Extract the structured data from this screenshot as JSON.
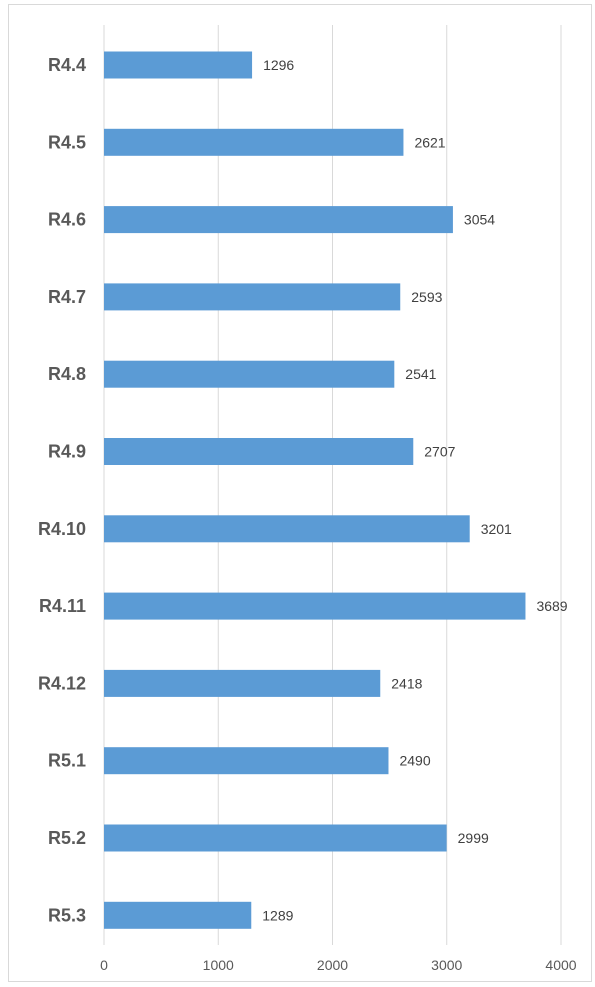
{
  "chart_data": {
    "type": "bar",
    "orientation": "horizontal",
    "categories": [
      "R4.4",
      "R4.5",
      "R4.6",
      "R4.7",
      "R4.8",
      "R4.9",
      "R4.10",
      "R4.11",
      "R4.12",
      "R5.1",
      "R5.2",
      "R5.3"
    ],
    "values": [
      1296,
      2621,
      3054,
      2593,
      2541,
      2707,
      3201,
      3689,
      2418,
      2490,
      2999,
      1289
    ],
    "xlim": [
      0,
      4000
    ],
    "xticks": [
      "0",
      "1000",
      "2000",
      "3000",
      "4000"
    ],
    "title": "",
    "xlabel": "",
    "ylabel": "",
    "grid": true,
    "bar_color": "#5b9bd5",
    "grid_color": "#d9d9d9",
    "data_labels": true
  }
}
